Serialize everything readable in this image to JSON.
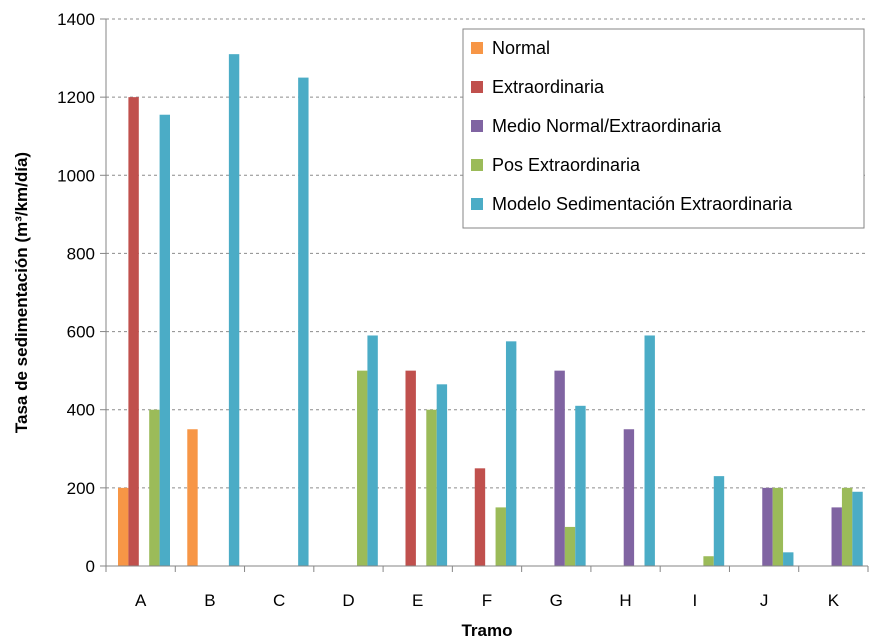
{
  "chart_data": {
    "type": "bar",
    "xlabel": "Tramo",
    "ylabel": "Tasa de sedimentación (m³/km/día)",
    "categories": [
      "A",
      "B",
      "C",
      "D",
      "E",
      "F",
      "G",
      "H",
      "I",
      "J",
      "K"
    ],
    "ylim": [
      0,
      1400
    ],
    "yticks": [
      0,
      200,
      400,
      600,
      800,
      1000,
      1200,
      1400
    ],
    "grid": "horizontal-dashed",
    "legend_position": "top-right",
    "series": [
      {
        "name": "Normal",
        "color": "#F79646",
        "values": [
          200,
          350,
          0,
          0,
          0,
          0,
          0,
          0,
          0,
          0,
          0
        ]
      },
      {
        "name": "Extraordinaria",
        "color": "#C0504D",
        "values": [
          1200,
          0,
          0,
          0,
          500,
          250,
          0,
          0,
          0,
          0,
          0
        ]
      },
      {
        "name": "Medio Normal/Extraordinaria",
        "color": "#8064A2",
        "values": [
          0,
          0,
          0,
          0,
          0,
          0,
          500,
          350,
          0,
          200,
          150
        ]
      },
      {
        "name": "Pos Extraordinaria",
        "color": "#9BBB59",
        "values": [
          400,
          0,
          0,
          500,
          400,
          150,
          100,
          0,
          25,
          200,
          200
        ]
      },
      {
        "name": "Modelo Sedimentación Extraordinaria",
        "color": "#4BACC6",
        "values": [
          1155,
          1310,
          1250,
          590,
          465,
          575,
          410,
          590,
          230,
          35,
          190
        ]
      }
    ]
  }
}
